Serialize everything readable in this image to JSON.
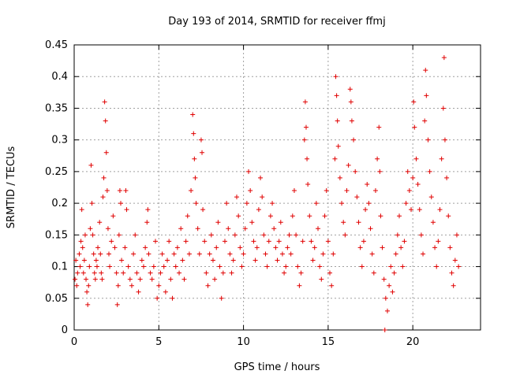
{
  "chart_data": {
    "type": "scatter",
    "title": "Day 193 of 2014, SRMTID for receiver ffmj",
    "xlabel": "GPS time / hours",
    "ylabel": "SRMTID / TECUs",
    "xlim": [
      0,
      24
    ],
    "ylim": [
      0,
      0.45
    ],
    "grid": true,
    "x_ticks": [
      0,
      5,
      10,
      15,
      20
    ],
    "x_tick_labels": [
      "0",
      "5",
      "10",
      "15",
      "20"
    ],
    "y_ticks": [
      0,
      0.05,
      0.1,
      0.15,
      0.2,
      0.25,
      0.3,
      0.35,
      0.4,
      0.45
    ],
    "y_tick_labels": [
      "0",
      "0.05",
      "0.1",
      "0.15",
      "0.2",
      "0.25",
      "0.3",
      "0.35",
      "0.4",
      "0.45"
    ],
    "marker": "+",
    "series_color": "#e00000",
    "series": [
      {
        "name": "SRMTID",
        "points": [
          [
            0.05,
            0.08
          ],
          [
            0.1,
            0.11
          ],
          [
            0.15,
            0.07
          ],
          [
            0.2,
            0.09
          ],
          [
            0.3,
            0.12
          ],
          [
            0.35,
            0.1
          ],
          [
            0.4,
            0.14
          ],
          [
            0.45,
            0.19
          ],
          [
            0.5,
            0.13
          ],
          [
            0.55,
            0.09
          ],
          [
            0.6,
            0.11
          ],
          [
            0.65,
            0.15
          ],
          [
            0.7,
            0.08
          ],
          [
            0.75,
            0.06
          ],
          [
            0.8,
            0.04
          ],
          [
            0.85,
            0.07
          ],
          [
            0.9,
            0.1
          ],
          [
            0.95,
            0.16
          ],
          [
            1.0,
            0.26
          ],
          [
            1.05,
            0.2
          ],
          [
            1.1,
            0.15
          ],
          [
            1.15,
            0.12
          ],
          [
            1.2,
            0.09
          ],
          [
            1.25,
            0.08
          ],
          [
            1.3,
            0.11
          ],
          [
            1.35,
            0.1
          ],
          [
            1.4,
            0.13
          ],
          [
            1.5,
            0.17
          ],
          [
            1.55,
            0.12
          ],
          [
            1.6,
            0.09
          ],
          [
            1.65,
            0.08
          ],
          [
            1.7,
            0.21
          ],
          [
            1.75,
            0.24
          ],
          [
            1.8,
            0.36
          ],
          [
            1.85,
            0.33
          ],
          [
            1.9,
            0.28
          ],
          [
            1.95,
            0.22
          ],
          [
            2.0,
            0.16
          ],
          [
            2.05,
            0.12
          ],
          [
            2.1,
            0.1
          ],
          [
            2.2,
            0.14
          ],
          [
            2.3,
            0.18
          ],
          [
            2.4,
            0.13
          ],
          [
            2.5,
            0.09
          ],
          [
            2.55,
            0.04
          ],
          [
            2.6,
            0.07
          ],
          [
            2.65,
            0.15
          ],
          [
            2.7,
            0.22
          ],
          [
            2.75,
            0.2
          ],
          [
            2.8,
            0.11
          ],
          [
            2.9,
            0.09
          ],
          [
            3.0,
            0.13
          ],
          [
            3.05,
            0.22
          ],
          [
            3.1,
            0.19
          ],
          [
            3.2,
            0.1
          ],
          [
            3.3,
            0.08
          ],
          [
            3.4,
            0.07
          ],
          [
            3.5,
            0.12
          ],
          [
            3.6,
            0.15
          ],
          [
            3.7,
            0.09
          ],
          [
            3.8,
            0.06
          ],
          [
            3.9,
            0.08
          ],
          [
            4.0,
            0.11
          ],
          [
            4.1,
            0.1
          ],
          [
            4.2,
            0.13
          ],
          [
            4.3,
            0.17
          ],
          [
            4.35,
            0.19
          ],
          [
            4.4,
            0.12
          ],
          [
            4.5,
            0.09
          ],
          [
            4.6,
            0.08
          ],
          [
            4.7,
            0.1
          ],
          [
            4.8,
            0.14
          ],
          [
            4.9,
            0.05
          ],
          [
            5.0,
            0.07
          ],
          [
            5.1,
            0.09
          ],
          [
            5.2,
            0.12
          ],
          [
            5.3,
            0.1
          ],
          [
            5.4,
            0.06
          ],
          [
            5.5,
            0.11
          ],
          [
            5.6,
            0.14
          ],
          [
            5.7,
            0.08
          ],
          [
            5.8,
            0.05
          ],
          [
            5.9,
            0.12
          ],
          [
            6.0,
            0.1
          ],
          [
            6.1,
            0.13
          ],
          [
            6.2,
            0.09
          ],
          [
            6.3,
            0.16
          ],
          [
            6.4,
            0.11
          ],
          [
            6.5,
            0.08
          ],
          [
            6.6,
            0.14
          ],
          [
            6.7,
            0.18
          ],
          [
            6.8,
            0.12
          ],
          [
            6.9,
            0.22
          ],
          [
            7.0,
            0.34
          ],
          [
            7.05,
            0.31
          ],
          [
            7.1,
            0.27
          ],
          [
            7.15,
            0.24
          ],
          [
            7.2,
            0.2
          ],
          [
            7.3,
            0.16
          ],
          [
            7.4,
            0.12
          ],
          [
            7.5,
            0.3
          ],
          [
            7.55,
            0.28
          ],
          [
            7.6,
            0.19
          ],
          [
            7.7,
            0.14
          ],
          [
            7.8,
            0.09
          ],
          [
            7.9,
            0.07
          ],
          [
            8.0,
            0.12
          ],
          [
            8.1,
            0.15
          ],
          [
            8.2,
            0.11
          ],
          [
            8.3,
            0.08
          ],
          [
            8.4,
            0.13
          ],
          [
            8.5,
            0.17
          ],
          [
            8.6,
            0.1
          ],
          [
            8.7,
            0.05
          ],
          [
            8.8,
            0.09
          ],
          [
            8.9,
            0.14
          ],
          [
            9.0,
            0.2
          ],
          [
            9.1,
            0.16
          ],
          [
            9.2,
            0.12
          ],
          [
            9.3,
            0.09
          ],
          [
            9.4,
            0.11
          ],
          [
            9.5,
            0.15
          ],
          [
            9.6,
            0.21
          ],
          [
            9.7,
            0.18
          ],
          [
            9.8,
            0.13
          ],
          [
            9.9,
            0.1
          ],
          [
            10.0,
            0.12
          ],
          [
            10.1,
            0.16
          ],
          [
            10.2,
            0.2
          ],
          [
            10.3,
            0.25
          ],
          [
            10.4,
            0.22
          ],
          [
            10.5,
            0.17
          ],
          [
            10.6,
            0.14
          ],
          [
            10.7,
            0.11
          ],
          [
            10.8,
            0.13
          ],
          [
            10.9,
            0.19
          ],
          [
            11.0,
            0.24
          ],
          [
            11.1,
            0.21
          ],
          [
            11.2,
            0.15
          ],
          [
            11.3,
            0.12
          ],
          [
            11.4,
            0.1
          ],
          [
            11.5,
            0.14
          ],
          [
            11.6,
            0.18
          ],
          [
            11.7,
            0.2
          ],
          [
            11.8,
            0.16
          ],
          [
            11.9,
            0.13
          ],
          [
            12.0,
            0.11
          ],
          [
            12.1,
            0.14
          ],
          [
            12.2,
            0.17
          ],
          [
            12.3,
            0.12
          ],
          [
            12.4,
            0.09
          ],
          [
            12.5,
            0.1
          ],
          [
            12.6,
            0.13
          ],
          [
            12.7,
            0.15
          ],
          [
            12.8,
            0.12
          ],
          [
            12.9,
            0.18
          ],
          [
            13.0,
            0.22
          ],
          [
            13.1,
            0.15
          ],
          [
            13.2,
            0.1
          ],
          [
            13.3,
            0.07
          ],
          [
            13.4,
            0.09
          ],
          [
            13.5,
            0.14
          ],
          [
            13.6,
            0.3
          ],
          [
            13.65,
            0.36
          ],
          [
            13.7,
            0.32
          ],
          [
            13.75,
            0.27
          ],
          [
            13.8,
            0.23
          ],
          [
            13.9,
            0.18
          ],
          [
            14.0,
            0.14
          ],
          [
            14.1,
            0.11
          ],
          [
            14.2,
            0.13
          ],
          [
            14.3,
            0.2
          ],
          [
            14.4,
            0.16
          ],
          [
            14.5,
            0.1
          ],
          [
            14.6,
            0.08
          ],
          [
            14.7,
            0.12
          ],
          [
            14.8,
            0.18
          ],
          [
            14.9,
            0.22
          ],
          [
            15.0,
            0.14
          ],
          [
            15.1,
            0.09
          ],
          [
            15.2,
            0.07
          ],
          [
            15.3,
            0.12
          ],
          [
            15.4,
            0.27
          ],
          [
            15.45,
            0.4
          ],
          [
            15.5,
            0.37
          ],
          [
            15.55,
            0.33
          ],
          [
            15.6,
            0.29
          ],
          [
            15.7,
            0.24
          ],
          [
            15.8,
            0.2
          ],
          [
            15.9,
            0.17
          ],
          [
            16.0,
            0.15
          ],
          [
            16.1,
            0.22
          ],
          [
            16.2,
            0.26
          ],
          [
            16.3,
            0.38
          ],
          [
            16.35,
            0.36
          ],
          [
            16.4,
            0.33
          ],
          [
            16.5,
            0.3
          ],
          [
            16.6,
            0.25
          ],
          [
            16.7,
            0.21
          ],
          [
            16.8,
            0.17
          ],
          [
            16.9,
            0.13
          ],
          [
            17.0,
            0.1
          ],
          [
            17.1,
            0.14
          ],
          [
            17.2,
            0.19
          ],
          [
            17.3,
            0.23
          ],
          [
            17.4,
            0.2
          ],
          [
            17.5,
            0.16
          ],
          [
            17.6,
            0.12
          ],
          [
            17.7,
            0.09
          ],
          [
            17.8,
            0.22
          ],
          [
            17.9,
            0.27
          ],
          [
            18.0,
            0.32
          ],
          [
            18.05,
            0.25
          ],
          [
            18.1,
            0.18
          ],
          [
            18.2,
            0.13
          ],
          [
            18.3,
            0.08
          ],
          [
            18.35,
            0.0
          ],
          [
            18.4,
            0.05
          ],
          [
            18.5,
            0.03
          ],
          [
            18.6,
            0.07
          ],
          [
            18.7,
            0.1
          ],
          [
            18.8,
            0.06
          ],
          [
            18.9,
            0.09
          ],
          [
            19.0,
            0.12
          ],
          [
            19.1,
            0.15
          ],
          [
            19.2,
            0.18
          ],
          [
            19.3,
            0.13
          ],
          [
            19.4,
            0.1
          ],
          [
            19.5,
            0.14
          ],
          [
            19.6,
            0.2
          ],
          [
            19.7,
            0.25
          ],
          [
            19.8,
            0.22
          ],
          [
            19.9,
            0.19
          ],
          [
            20.0,
            0.24
          ],
          [
            20.05,
            0.36
          ],
          [
            20.1,
            0.32
          ],
          [
            20.2,
            0.27
          ],
          [
            20.3,
            0.23
          ],
          [
            20.4,
            0.19
          ],
          [
            20.5,
            0.15
          ],
          [
            20.6,
            0.12
          ],
          [
            20.7,
            0.33
          ],
          [
            20.75,
            0.41
          ],
          [
            20.8,
            0.37
          ],
          [
            20.9,
            0.3
          ],
          [
            21.0,
            0.25
          ],
          [
            21.1,
            0.21
          ],
          [
            21.2,
            0.17
          ],
          [
            21.3,
            0.13
          ],
          [
            21.4,
            0.1
          ],
          [
            21.5,
            0.14
          ],
          [
            21.6,
            0.19
          ],
          [
            21.7,
            0.27
          ],
          [
            21.8,
            0.35
          ],
          [
            21.85,
            0.43
          ],
          [
            21.9,
            0.3
          ],
          [
            22.0,
            0.24
          ],
          [
            22.1,
            0.18
          ],
          [
            22.2,
            0.13
          ],
          [
            22.3,
            0.09
          ],
          [
            22.4,
            0.07
          ],
          [
            22.5,
            0.11
          ],
          [
            22.6,
            0.15
          ],
          [
            22.7,
            0.1
          ]
        ]
      }
    ]
  }
}
